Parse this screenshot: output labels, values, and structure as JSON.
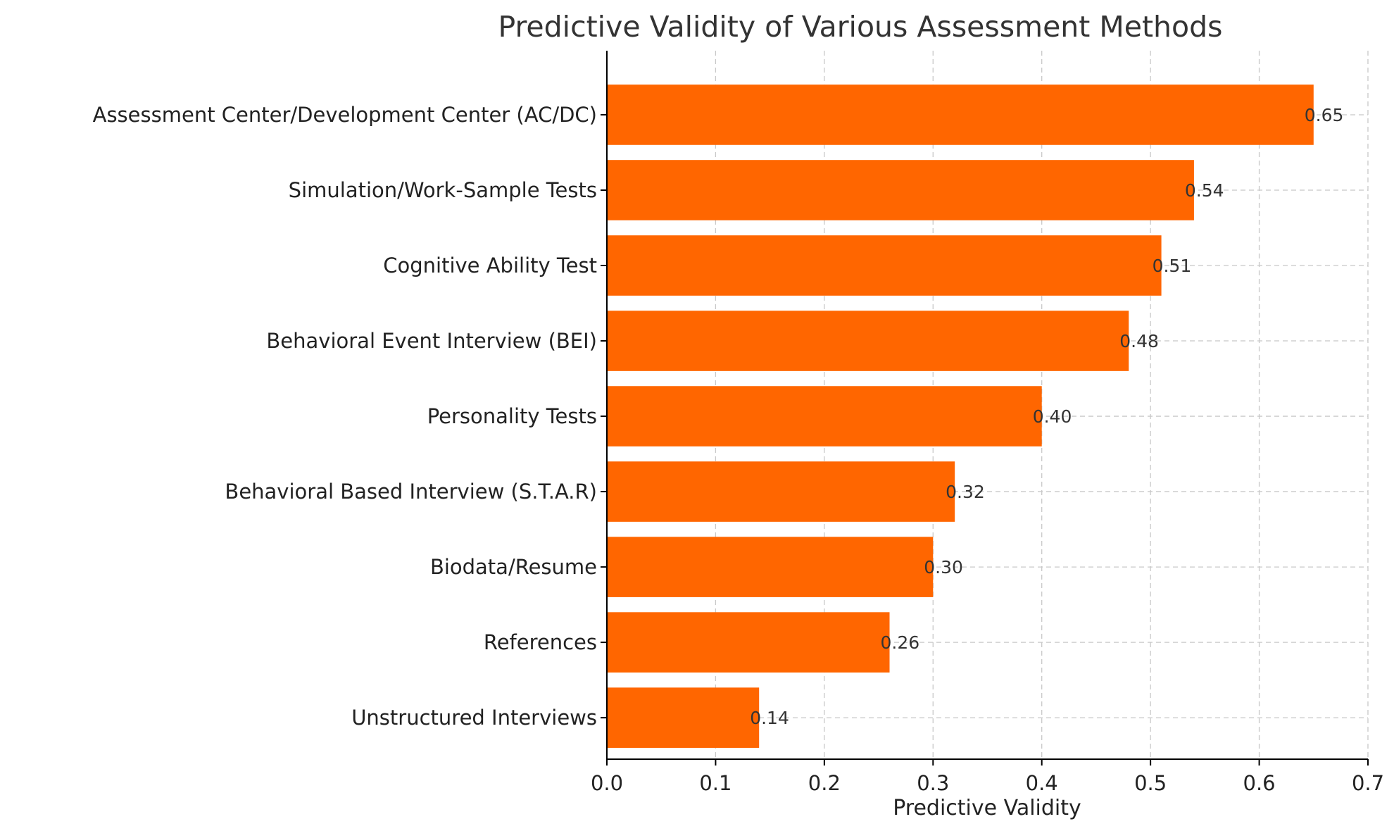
{
  "chart_data": {
    "type": "bar",
    "orientation": "horizontal",
    "title": "Predictive Validity of Various Assessment Methods",
    "xlabel": "Predictive Validity",
    "ylabel": "",
    "xlim": [
      0,
      0.7
    ],
    "xticks": [
      0.0,
      0.1,
      0.2,
      0.3,
      0.4,
      0.5,
      0.6,
      0.7
    ],
    "xtick_labels": [
      "0.0",
      "0.1",
      "0.2",
      "0.3",
      "0.4",
      "0.5",
      "0.6",
      "0.7"
    ],
    "grid": true,
    "bar_color": "#ff6600",
    "categories": [
      "Assessment Center/Development Center (AC/DC)",
      "Simulation/Work-Sample Tests",
      "Cognitive Ability Test",
      "Behavioral Event Interview (BEI)",
      "Personality Tests",
      "Behavioral Based Interview (S.T.A.R)",
      "Biodata/Resume",
      "References",
      "Unstructured Interviews"
    ],
    "values": [
      0.65,
      0.54,
      0.51,
      0.48,
      0.4,
      0.32,
      0.3,
      0.26,
      0.14
    ],
    "value_labels": [
      "0.65",
      "0.54",
      "0.51",
      "0.48",
      "0.40",
      "0.32",
      "0.30",
      "0.26",
      "0.14"
    ]
  }
}
